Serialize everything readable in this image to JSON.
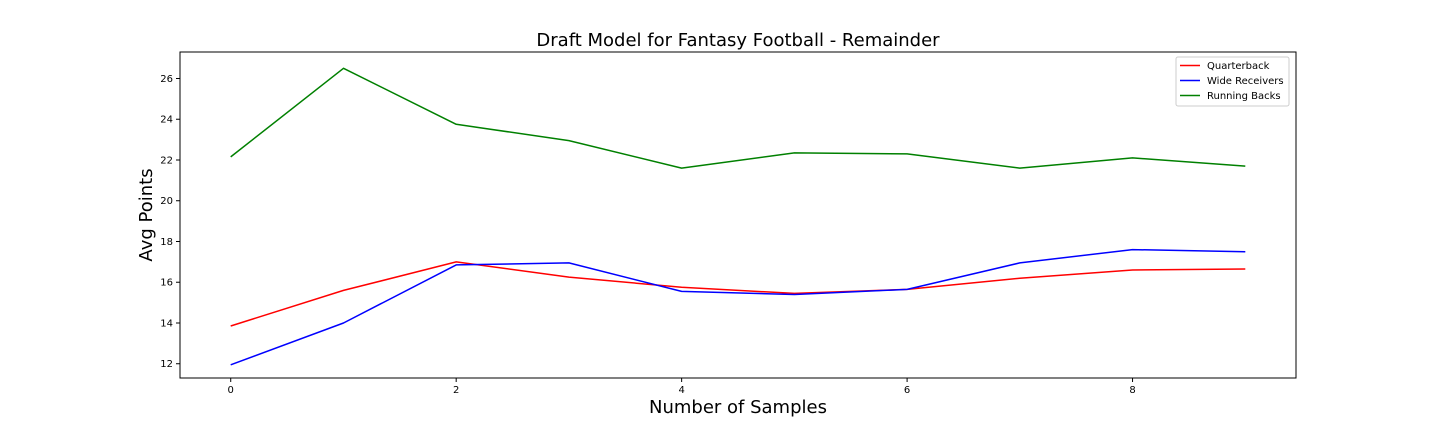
{
  "chart_data": {
    "type": "line",
    "title": "Draft Model for Fantasy Football - Remainder",
    "xlabel": "Number of Samples",
    "ylabel": "Avg Points",
    "x": [
      0,
      1,
      2,
      3,
      4,
      5,
      6,
      7,
      8,
      9
    ],
    "xlim": [
      -0.45,
      9.45
    ],
    "ylim": [
      11.3,
      27.3
    ],
    "xticks": [
      0,
      2,
      4,
      6,
      8
    ],
    "yticks": [
      12,
      14,
      16,
      18,
      20,
      22,
      24,
      26
    ],
    "grid": false,
    "legend_position": "top-right",
    "series": [
      {
        "name": "Quarterback",
        "color": "#ff0000",
        "values": [
          13.85,
          15.6,
          17.0,
          16.25,
          15.75,
          15.45,
          15.65,
          16.2,
          16.6,
          16.65
        ]
      },
      {
        "name": "Wide Receivers",
        "color": "#0000ff",
        "values": [
          11.95,
          14.0,
          16.85,
          16.95,
          15.55,
          15.4,
          15.65,
          16.95,
          17.6,
          17.5
        ]
      },
      {
        "name": "Running Backs",
        "color": "#008000",
        "values": [
          22.15,
          26.5,
          23.75,
          22.95,
          21.6,
          22.35,
          22.3,
          21.6,
          22.1,
          21.7
        ]
      }
    ]
  }
}
